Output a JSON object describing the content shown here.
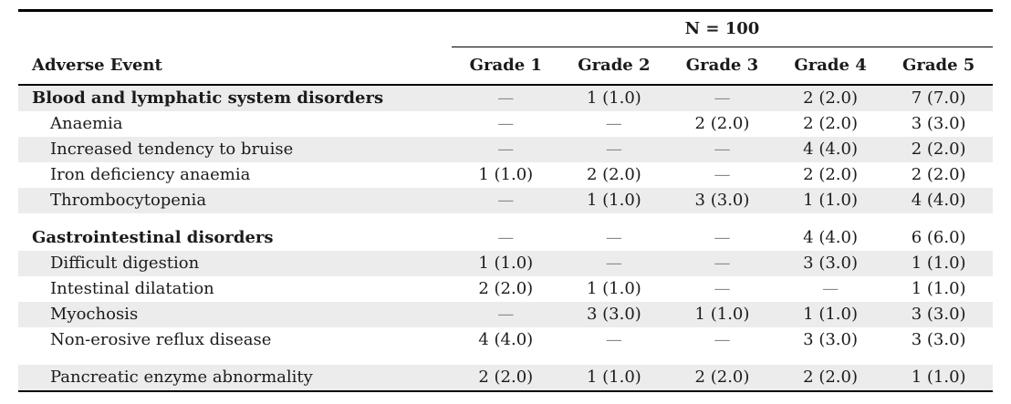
{
  "colors": {
    "paper": "#ffffff",
    "text": "#1b1b1b",
    "rule": "#000000",
    "stripe": "#ececec",
    "dash": "#8a8a8a"
  },
  "table": {
    "n_header": "N = 100",
    "col_headers": [
      "Adverse Event",
      "Grade 1",
      "Grade 2",
      "Grade 3",
      "Grade 4",
      "Grade 5"
    ],
    "rows": [
      {
        "label": "Blood and lymphatic system disorders",
        "type": "group",
        "values": [
          "—",
          "1 (1.0)",
          "—",
          "2 (2.0)",
          "7 (7.0)"
        ]
      },
      {
        "label": "Anaemia",
        "type": "item",
        "values": [
          "—",
          "—",
          "2 (2.0)",
          "2 (2.0)",
          "3 (3.0)"
        ]
      },
      {
        "label": "Increased tendency to bruise",
        "type": "item",
        "values": [
          "—",
          "—",
          "—",
          "4 (4.0)",
          "2 (2.0)"
        ]
      },
      {
        "label": "Iron deficiency anaemia",
        "type": "item",
        "values": [
          "1 (1.0)",
          "2 (2.0)",
          "—",
          "2 (2.0)",
          "2 (2.0)"
        ]
      },
      {
        "label": "Thrombocytopenia",
        "type": "item",
        "values": [
          "—",
          "1 (1.0)",
          "3 (3.0)",
          "1 (1.0)",
          "4 (4.0)"
        ]
      },
      {
        "label": "Gastrointestinal disorders",
        "type": "group",
        "values": [
          "—",
          "—",
          "—",
          "4 (4.0)",
          "6 (6.0)"
        ]
      },
      {
        "label": "Difficult digestion",
        "type": "item",
        "values": [
          "1 (1.0)",
          "—",
          "—",
          "3 (3.0)",
          "1 (1.0)"
        ]
      },
      {
        "label": "Intestinal dilatation",
        "type": "item",
        "values": [
          "2 (2.0)",
          "1 (1.0)",
          "—",
          "—",
          "1 (1.0)"
        ]
      },
      {
        "label": "Myochosis",
        "type": "item",
        "values": [
          "—",
          "3 (3.0)",
          "1 (1.0)",
          "1 (1.0)",
          "3 (3.0)"
        ]
      },
      {
        "label": "Non-erosive reflux disease",
        "type": "item",
        "values": [
          "4 (4.0)",
          "—",
          "—",
          "3 (3.0)",
          "3 (3.0)"
        ]
      },
      {
        "label": "Pancreatic enzyme abnormality",
        "type": "item",
        "values": [
          "2 (2.0)",
          "1 (1.0)",
          "2 (2.0)",
          "2 (2.0)",
          "1 (1.0)"
        ]
      }
    ]
  }
}
